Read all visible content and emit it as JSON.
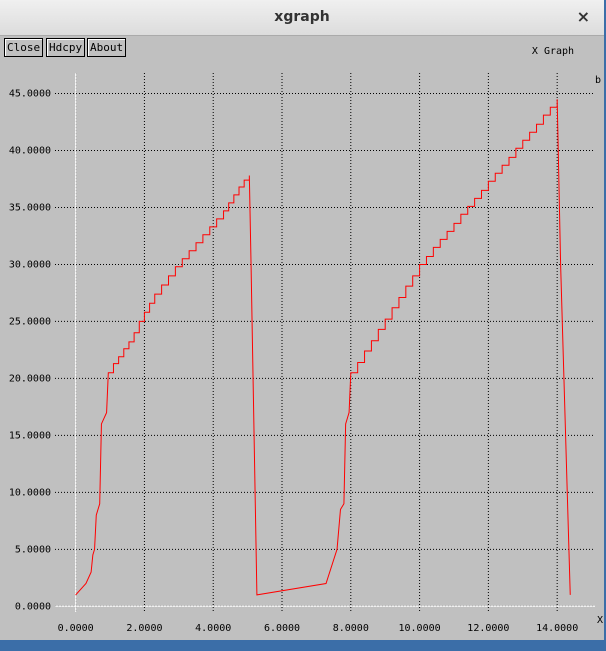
{
  "window": {
    "title": "xgraph",
    "close": "×",
    "buttons": [
      "Close",
      "Hdcpy",
      "About"
    ]
  },
  "chart_data": {
    "type": "line",
    "title": "X Graph",
    "x_label": "X",
    "y_label": "b",
    "color": "#ff0000",
    "grid": true,
    "xlim": [
      -0.6,
      15.1
    ],
    "ylim": [
      -0.5,
      46.8
    ],
    "xticks": [
      {
        "value": 0,
        "label": "0.0000"
      },
      {
        "value": 2,
        "label": "2.0000"
      },
      {
        "value": 4,
        "label": "4.0000"
      },
      {
        "value": 6,
        "label": "6.0000"
      },
      {
        "value": 8,
        "label": "8.0000"
      },
      {
        "value": 10,
        "label": "10.0000"
      },
      {
        "value": 12,
        "label": "12.0000"
      },
      {
        "value": 14,
        "label": "14.0000"
      }
    ],
    "yticks": [
      {
        "value": 0,
        "label": "0.0000"
      },
      {
        "value": 5,
        "label": "5.0000"
      },
      {
        "value": 10,
        "label": "10.0000"
      },
      {
        "value": 15,
        "label": "15.0000"
      },
      {
        "value": 20,
        "label": "20.0000"
      },
      {
        "value": 25,
        "label": "25.0000"
      },
      {
        "value": 30,
        "label": "30.0000"
      },
      {
        "value": 35,
        "label": "35.0000"
      },
      {
        "value": 40,
        "label": "40.0000"
      },
      {
        "value": 45,
        "label": "45.0000"
      }
    ],
    "x": [
      0,
      0.3,
      0.45,
      0.5,
      0.55,
      0.6,
      0.7,
      0.75,
      0.9,
      0.95,
      1.1,
      1.1,
      1.25,
      1.25,
      1.4,
      1.4,
      1.55,
      1.55,
      1.7,
      1.7,
      1.85,
      1.85,
      2.0,
      2.0,
      2.15,
      2.15,
      2.3,
      2.3,
      2.5,
      2.5,
      2.7,
      2.7,
      2.9,
      2.9,
      3.1,
      3.1,
      3.3,
      3.3,
      3.5,
      3.5,
      3.7,
      3.7,
      3.9,
      3.9,
      4.1,
      4.1,
      4.3,
      4.3,
      4.45,
      4.45,
      4.6,
      4.6,
      4.75,
      4.75,
      4.9,
      4.9,
      5.05,
      5.05,
      5.1,
      5.27,
      7.28,
      7.6,
      7.7,
      7.8,
      7.85,
      7.95,
      8.0,
      8.2,
      8.2,
      8.4,
      8.4,
      8.6,
      8.6,
      8.8,
      8.8,
      9.0,
      9.0,
      9.2,
      9.2,
      9.4,
      9.4,
      9.6,
      9.6,
      9.8,
      9.8,
      10.0,
      10.0,
      10.2,
      10.2,
      10.4,
      10.4,
      10.6,
      10.6,
      10.8,
      10.8,
      11.0,
      11.0,
      11.2,
      11.2,
      11.4,
      11.4,
      11.6,
      11.6,
      11.8,
      11.8,
      12.0,
      12.0,
      12.2,
      12.2,
      12.4,
      12.4,
      12.6,
      12.6,
      12.8,
      12.8,
      13.0,
      13.0,
      13.2,
      13.2,
      13.4,
      13.4,
      13.6,
      13.6,
      13.8,
      13.8,
      14.0,
      14.0,
      14.1,
      14.38
    ],
    "values": [
      1,
      2,
      3,
      4.5,
      5,
      8,
      9,
      16,
      17,
      20.5,
      20.5,
      21.3,
      21.3,
      21.9,
      21.9,
      22.6,
      22.6,
      23.2,
      23.2,
      24.0,
      24.0,
      25.0,
      25.0,
      25.8,
      25.8,
      26.6,
      26.6,
      27.4,
      27.4,
      28.2,
      28.2,
      29.0,
      29.0,
      29.8,
      29.8,
      30.5,
      30.5,
      31.2,
      31.2,
      31.9,
      31.9,
      32.6,
      32.6,
      33.3,
      33.3,
      34.0,
      34.0,
      34.7,
      34.7,
      35.4,
      35.4,
      36.1,
      36.1,
      36.8,
      36.8,
      37.4,
      37.4,
      37.8,
      30,
      1,
      2,
      5,
      8.5,
      9,
      16,
      17,
      20.5,
      20.5,
      21.4,
      21.4,
      22.4,
      22.4,
      23.3,
      23.3,
      24.3,
      24.3,
      25.2,
      25.2,
      26.2,
      26.2,
      27.1,
      27.1,
      28.1,
      28.1,
      29.0,
      29.0,
      30.0,
      30.0,
      30.7,
      30.7,
      31.5,
      31.5,
      32.2,
      32.2,
      32.9,
      32.9,
      33.6,
      33.6,
      34.4,
      34.4,
      35.1,
      35.1,
      35.8,
      35.8,
      36.5,
      36.5,
      37.3,
      37.3,
      38.0,
      38.0,
      38.7,
      38.7,
      39.4,
      39.4,
      40.2,
      40.2,
      40.9,
      40.9,
      41.6,
      41.6,
      42.3,
      42.3,
      43.1,
      43.1,
      43.8,
      43.8,
      44.5,
      30,
      1
    ]
  }
}
